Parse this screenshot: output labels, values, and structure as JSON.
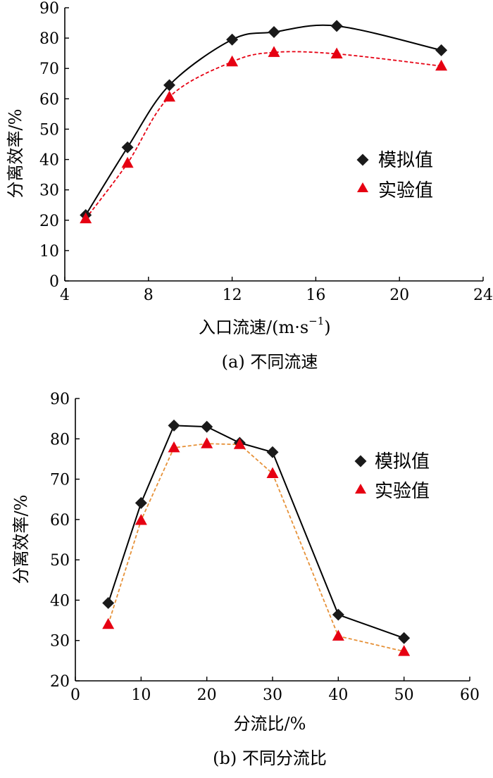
{
  "chart_data": [
    {
      "type": "line",
      "caption": "(a) 不同流速",
      "xlabel_main": "入口流速/(m·s",
      "xlabel_sup": "−1",
      "xlabel_end": ")",
      "ylabel": "分离效率/%",
      "xlim": [
        4,
        24
      ],
      "ylim": [
        0,
        90
      ],
      "xticks": [
        4,
        8,
        12,
        16,
        20,
        24
      ],
      "yticks": [
        0,
        10,
        20,
        30,
        40,
        50,
        60,
        70,
        80,
        90
      ],
      "legend_position": "right",
      "series": [
        {
          "name": "模拟值",
          "marker": "diamond",
          "color": "#000000",
          "line": "solid-smooth",
          "x": [
            5,
            7,
            9,
            12,
            14,
            17,
            22
          ],
          "y": [
            21.7,
            44,
            64.5,
            79.5,
            82,
            84,
            76
          ]
        },
        {
          "name": "实验值",
          "marker": "triangle",
          "color": "#e60012",
          "line": "dashed-smooth",
          "x": [
            5,
            7,
            9,
            12,
            14,
            17,
            22
          ],
          "y": [
            20.5,
            38.8,
            60.6,
            72.2,
            75.3,
            74.8,
            70.8
          ]
        }
      ]
    },
    {
      "type": "line",
      "caption": "(b) 不同分流比",
      "xlabel": "分流比/%",
      "ylabel": "分离效率/%",
      "xlim": [
        0,
        60
      ],
      "ylim": [
        20,
        90
      ],
      "xticks": [
        0,
        10,
        20,
        30,
        40,
        50,
        60
      ],
      "yticks": [
        20,
        30,
        40,
        50,
        60,
        70,
        80,
        90
      ],
      "legend_position": "top-right",
      "series": [
        {
          "name": "模拟值",
          "marker": "diamond",
          "color": "#000000",
          "line": "solid",
          "x": [
            5,
            10,
            15,
            20,
            25,
            30,
            40,
            50
          ],
          "y": [
            39.3,
            64.1,
            83.3,
            83,
            79,
            76.7,
            36.4,
            30.6
          ]
        },
        {
          "name": "实验值",
          "marker": "triangle",
          "color": "#e60012",
          "linecolor": "#e69138",
          "line": "dashed",
          "x": [
            5,
            10,
            15,
            20,
            25,
            30,
            40,
            50
          ],
          "y": [
            34,
            59.8,
            77.8,
            78.8,
            78.6,
            71.4,
            31.1,
            27.3
          ]
        }
      ]
    }
  ]
}
